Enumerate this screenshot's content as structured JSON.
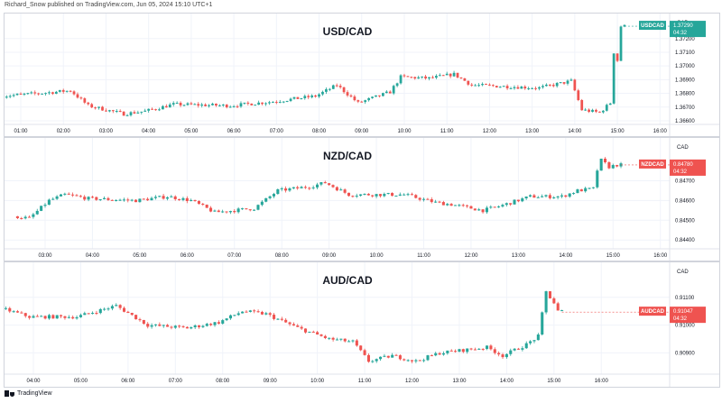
{
  "header": {
    "publisher_text": "Richard_Snow published on TradingView.com, Jun 05, 2024 15:10 UTC+1"
  },
  "footer": {
    "brand": "TradingView",
    "logo_icon": "tradingview-logo-icon"
  },
  "colors": {
    "up": "#26a69a",
    "down": "#ef5350",
    "usd_badge": "#26a69a",
    "grid": "#f0f3fa",
    "axis_text": "#131722"
  },
  "chart_data": [
    {
      "type": "candlestick",
      "title": "USD/CAD",
      "currency": "CAD",
      "symbol_badge": "USDCAD",
      "last_price": "1.37290",
      "last_direction": "up",
      "countdown": "04:32",
      "ylim": [
        1.3658,
        1.3733
      ],
      "price_ticks": [
        1.372,
        1.371,
        1.37,
        1.369,
        1.368,
        1.367,
        1.366
      ],
      "price_tick_labels": [
        "1.37200",
        "1.37100",
        "1.37000",
        "1.36900",
        "1.36800",
        "1.36700",
        "1.36600"
      ],
      "time_labels": [
        "01:00",
        "02:00",
        "03:00",
        "04:00",
        "05:00",
        "06:00",
        "07:00",
        "08:00",
        "09:00",
        "10:00",
        "11:00",
        "12:00",
        "13:00",
        "14:00",
        "15:00",
        "16:00"
      ],
      "time_start": "00:35",
      "candle_minutes": 5,
      "shape": {
        "base": 1.368,
        "points": [
          [
            "00:35",
            1.3678
          ],
          [
            "01:30",
            1.368
          ],
          [
            "02:15",
            1.3682
          ],
          [
            "02:40",
            1.3671
          ],
          [
            "03:30",
            1.3665
          ],
          [
            "04:00",
            1.3667
          ],
          [
            "04:40",
            1.3672
          ],
          [
            "06:00",
            1.3671
          ],
          [
            "07:00",
            1.3674
          ],
          [
            "08:00",
            1.3678
          ],
          [
            "08:30",
            1.3686
          ],
          [
            "09:00",
            1.3673
          ],
          [
            "09:45",
            1.3681
          ],
          [
            "10:00",
            1.3692
          ],
          [
            "10:40",
            1.3691
          ],
          [
            "11:15",
            1.3694
          ],
          [
            "11:40",
            1.3686
          ],
          [
            "12:30",
            1.3685
          ],
          [
            "13:15",
            1.3684
          ],
          [
            "14:00",
            1.3689
          ],
          [
            "14:15",
            1.3668
          ],
          [
            "14:40",
            1.3666
          ],
          [
            "14:55",
            1.3673
          ],
          [
            "15:00",
            1.371
          ],
          [
            "15:05",
            1.3704
          ],
          [
            "15:10",
            1.3729
          ]
        ]
      }
    },
    {
      "type": "candlestick",
      "title": "NZD/CAD",
      "currency": "CAD",
      "symbol_badge": "NZDCAD",
      "last_price": "0.84780",
      "last_direction": "down",
      "countdown": "04:32",
      "ylim": [
        0.8436,
        0.8488
      ],
      "price_ticks": [
        0.847,
        0.846,
        0.845,
        0.844
      ],
      "price_tick_labels": [
        "0.84700",
        "0.84600",
        "0.84500",
        "0.84400"
      ],
      "time_labels": [
        "03:00",
        "04:00",
        "05:00",
        "06:00",
        "07:00",
        "08:00",
        "09:00",
        "10:00",
        "11:00",
        "12:00",
        "13:00",
        "14:00",
        "15:00",
        "16:00"
      ],
      "time_start": "02:25",
      "candle_minutes": 5,
      "shape": {
        "base": 0.8455,
        "points": [
          [
            "02:25",
            0.8452
          ],
          [
            "02:45",
            0.8451
          ],
          [
            "03:10",
            0.846
          ],
          [
            "03:30",
            0.8463
          ],
          [
            "04:00",
            0.8461
          ],
          [
            "05:00",
            0.846
          ],
          [
            "05:40",
            0.8462
          ],
          [
            "06:10",
            0.846
          ],
          [
            "06:40",
            0.8454
          ],
          [
            "07:30",
            0.8456
          ],
          [
            "08:00",
            0.8465
          ],
          [
            "08:40",
            0.8467
          ],
          [
            "09:00",
            0.8469
          ],
          [
            "09:30",
            0.8463
          ],
          [
            "10:00",
            0.8463
          ],
          [
            "10:40",
            0.8463
          ],
          [
            "11:20",
            0.8459
          ],
          [
            "11:40",
            0.8458
          ],
          [
            "12:20",
            0.8455
          ],
          [
            "12:40",
            0.8457
          ],
          [
            "13:20",
            0.8462
          ],
          [
            "14:00",
            0.8462
          ],
          [
            "14:20",
            0.8465
          ],
          [
            "14:40",
            0.8466
          ],
          [
            "14:48",
            0.8481
          ],
          [
            "15:00",
            0.8477
          ],
          [
            "15:10",
            0.8478
          ]
        ]
      }
    },
    {
      "type": "candlestick",
      "title": "AUD/CAD",
      "currency": "CAD",
      "symbol_badge": "AUDCAD",
      "last_price": "0.91047",
      "last_direction": "down",
      "countdown": "04:32",
      "ylim": [
        0.9083,
        0.912
      ],
      "price_ticks": [
        0.911,
        0.91,
        0.909
      ],
      "price_tick_labels": [
        "0.91100",
        "0.91000",
        "0.90900"
      ],
      "time_labels": [
        "04:00",
        "05:00",
        "06:00",
        "07:00",
        "08:00",
        "09:00",
        "10:00",
        "11:00",
        "12:00",
        "13:00",
        "14:00",
        "15:00",
        "16:00"
      ],
      "time_start": "03:25",
      "candle_minutes": 5,
      "shape": {
        "base": 0.91,
        "points": [
          [
            "03:25",
            0.9106
          ],
          [
            "04:00",
            0.9103
          ],
          [
            "05:00",
            0.9103
          ],
          [
            "05:50",
            0.9107
          ],
          [
            "06:30",
            0.91
          ],
          [
            "07:20",
            0.9099
          ],
          [
            "08:00",
            0.9101
          ],
          [
            "08:30",
            0.9105
          ],
          [
            "09:00",
            0.9104
          ],
          [
            "09:40",
            0.9099
          ],
          [
            "10:20",
            0.9095
          ],
          [
            "10:50",
            0.9094
          ],
          [
            "11:10",
            0.9087
          ],
          [
            "11:40",
            0.9089
          ],
          [
            "12:10",
            0.9087
          ],
          [
            "12:40",
            0.909
          ],
          [
            "13:10",
            0.9091
          ],
          [
            "13:40",
            0.9092
          ],
          [
            "14:00",
            0.9089
          ],
          [
            "14:30",
            0.9093
          ],
          [
            "14:45",
            0.9096
          ],
          [
            "14:55",
            0.9112
          ],
          [
            "15:05",
            0.9108
          ],
          [
            "15:10",
            0.9105
          ]
        ]
      }
    }
  ]
}
